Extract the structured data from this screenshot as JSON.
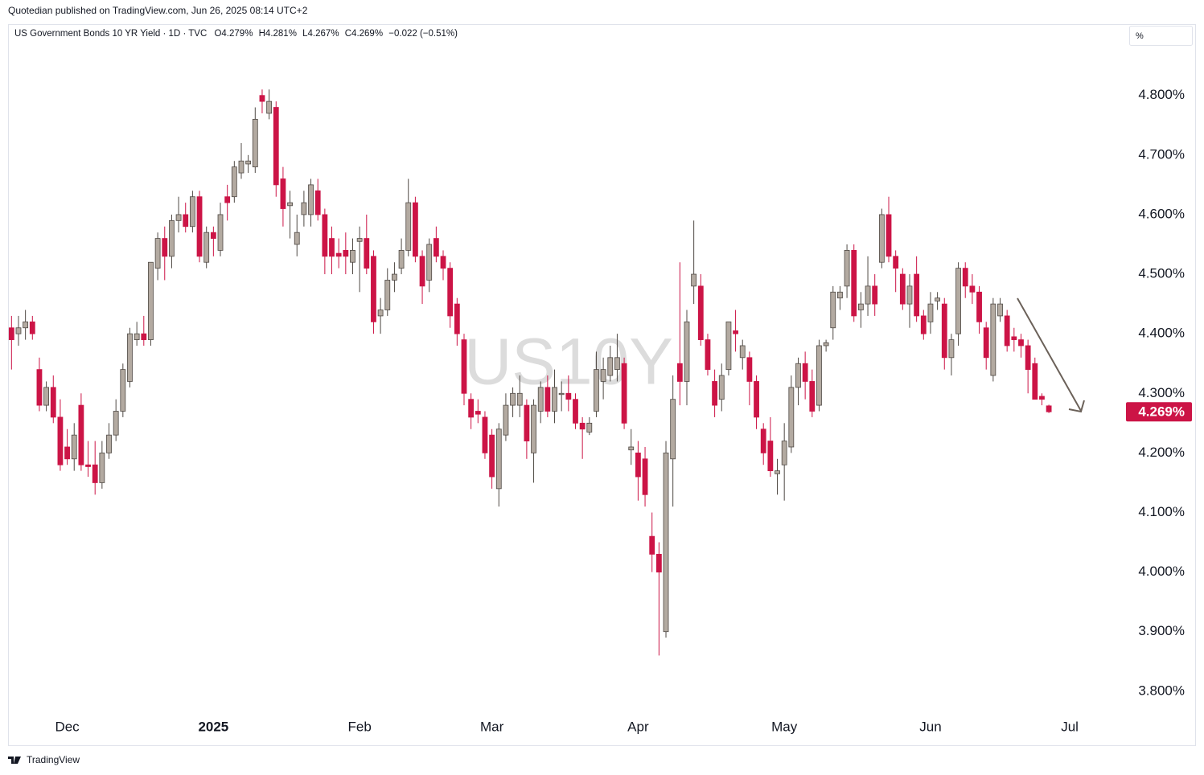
{
  "header": {
    "published": "Quotedian published on TradingView.com, Jun 26, 2025 08:14 UTC+2"
  },
  "legend": {
    "symbol": "US Government Bonds 10 YR Yield · 1D · TVC",
    "ohlc": [
      "O4.279%",
      "H4.281%",
      "L4.267%",
      "C4.269%"
    ],
    "change": "−0.022 (−0.51%)"
  },
  "unit": "%",
  "watermark": "US10Y",
  "footer": "TradingView",
  "chart_data": {
    "type": "candlestick",
    "up_color": "#b3aaa1",
    "down_color": "#cc1446",
    "grid": false,
    "ylim": [
      3.762,
      4.917
    ],
    "yticks": [
      {
        "value": 3.8,
        "label": "3.800%"
      },
      {
        "value": 3.9,
        "label": "3.900%"
      },
      {
        "value": 4.0,
        "label": "4.000%"
      },
      {
        "value": 4.1,
        "label": "4.100%"
      },
      {
        "value": 4.2,
        "label": "4.200%"
      },
      {
        "value": 4.3,
        "label": "4.300%"
      },
      {
        "value": 4.4,
        "label": "4.400%"
      },
      {
        "value": 4.5,
        "label": "4.500%"
      },
      {
        "value": 4.6,
        "label": "4.600%"
      },
      {
        "value": 4.7,
        "label": "4.700%"
      },
      {
        "value": 4.8,
        "label": "4.800%"
      }
    ],
    "last_price": {
      "value": 4.269,
      "label": "4.269%"
    },
    "categories": [
      null,
      null,
      null,
      null,
      null,
      null,
      null,
      null,
      "Dec",
      null,
      null,
      null,
      null,
      null,
      null,
      null,
      null,
      null,
      null,
      null,
      null,
      null,
      null,
      null,
      null,
      null,
      null,
      null,
      null,
      "2025",
      null,
      null,
      null,
      null,
      null,
      null,
      null,
      null,
      null,
      null,
      null,
      null,
      null,
      null,
      null,
      null,
      null,
      null,
      null,
      null,
      "Feb",
      null,
      null,
      null,
      null,
      null,
      null,
      null,
      null,
      null,
      null,
      null,
      null,
      null,
      null,
      null,
      null,
      null,
      null,
      "Mar",
      null,
      null,
      null,
      null,
      null,
      null,
      null,
      null,
      null,
      null,
      null,
      null,
      null,
      null,
      null,
      null,
      null,
      null,
      null,
      null,
      "Apr",
      null,
      null,
      null,
      null,
      null,
      null,
      null,
      null,
      null,
      null,
      null,
      null,
      null,
      null,
      null,
      null,
      null,
      null,
      null,
      null,
      "May",
      null,
      null,
      null,
      null,
      null,
      null,
      null,
      null,
      null,
      null,
      null,
      null,
      null,
      null,
      null,
      null,
      null,
      null,
      null,
      null,
      "Jun",
      null,
      null,
      null,
      null,
      null,
      null,
      null,
      null,
      null,
      null,
      null,
      null,
      null,
      null,
      null,
      null,
      null,
      null,
      null,
      "Jul",
      null,
      null,
      null,
      null,
      null,
      null,
      null
    ],
    "open": [
      4.41,
      4.4,
      4.41,
      4.42,
      4.34,
      4.28,
      4.31,
      4.26,
      4.21,
      4.19,
      4.28,
      4.18,
      4.18,
      4.15,
      4.2,
      4.23,
      4.27,
      4.32,
      4.39,
      4.4,
      4.39,
      4.51,
      4.56,
      4.53,
      4.59,
      4.6,
      4.58,
      4.63,
      4.52,
      4.57,
      4.54,
      4.63,
      4.63,
      4.67,
      4.685,
      4.68,
      4.8,
      4.77,
      4.78,
      4.66,
      4.615,
      4.55,
      4.6,
      4.6,
      4.64,
      4.6,
      4.56,
      4.535,
      4.54,
      4.52,
      4.555,
      4.56,
      4.53,
      4.43,
      4.44,
      4.49,
      4.51,
      4.54,
      4.62,
      4.53,
      4.49,
      4.56,
      4.53,
      4.51,
      4.45,
      4.39,
      4.29,
      4.27,
      4.26,
      4.23,
      4.14,
      4.23,
      4.28,
      4.28,
      4.28,
      4.2,
      4.27,
      4.31,
      4.27,
      4.298,
      4.3,
      4.29,
      4.25,
      4.235,
      4.27,
      4.32,
      4.33,
      4.34,
      4.35,
      4.205,
      4.2,
      4.19,
      4.06,
      4.03,
      3.9,
      4.19,
      4.35,
      4.32,
      4.48,
      4.48,
      4.39,
      4.32,
      4.29,
      4.34,
      4.405,
      4.36,
      4.36,
      4.32,
      4.24,
      4.22,
      4.165,
      4.18,
      4.21,
      4.31,
      4.35,
      4.32,
      4.28,
      4.38,
      4.41,
      4.46,
      4.48,
      4.54,
      4.44,
      4.45,
      4.48,
      4.52,
      4.6,
      4.53,
      4.5,
      4.45,
      4.5,
      4.43,
      4.42,
      4.455,
      4.45,
      4.36,
      4.4,
      4.51,
      4.48,
      4.47,
      4.41,
      4.33,
      4.43,
      4.43,
      4.395,
      4.39,
      4.38,
      4.35,
      4.295,
      4.279,
      null,
      null,
      null,
      null,
      null,
      null,
      null,
      null,
      null,
      null
    ],
    "high": [
      4.43,
      4.43,
      4.44,
      4.43,
      4.36,
      4.32,
      4.33,
      4.29,
      4.24,
      4.25,
      4.3,
      4.22,
      4.22,
      4.22,
      4.25,
      4.29,
      4.35,
      4.41,
      4.42,
      4.43,
      4.52,
      4.57,
      4.58,
      4.6,
      4.63,
      4.62,
      4.64,
      4.64,
      4.58,
      4.58,
      4.62,
      4.65,
      4.69,
      4.72,
      4.7,
      4.78,
      4.81,
      4.81,
      4.79,
      4.68,
      4.64,
      4.6,
      4.64,
      4.66,
      4.66,
      4.61,
      4.58,
      4.56,
      4.57,
      4.56,
      4.58,
      4.6,
      4.54,
      4.46,
      4.51,
      4.52,
      4.56,
      4.66,
      4.63,
      4.54,
      4.56,
      4.58,
      4.54,
      4.52,
      4.46,
      4.4,
      4.3,
      4.29,
      4.27,
      4.24,
      4.25,
      4.3,
      4.31,
      4.33,
      4.29,
      4.29,
      4.32,
      4.33,
      4.34,
      4.32,
      4.33,
      4.3,
      4.26,
      4.26,
      4.37,
      4.36,
      4.38,
      4.4,
      4.36,
      4.24,
      4.22,
      4.21,
      4.1,
      4.05,
      4.22,
      4.33,
      4.52,
      4.44,
      4.59,
      4.5,
      4.4,
      4.34,
      4.35,
      4.42,
      4.44,
      4.39,
      4.37,
      4.33,
      4.25,
      4.26,
      4.19,
      4.25,
      4.33,
      4.36,
      4.37,
      4.34,
      4.39,
      4.39,
      4.48,
      4.48,
      4.55,
      4.55,
      4.47,
      4.53,
      4.5,
      4.61,
      4.63,
      4.54,
      4.51,
      4.5,
      4.53,
      4.44,
      4.47,
      4.47,
      4.46,
      4.4,
      4.52,
      4.52,
      4.5,
      4.48,
      4.42,
      4.46,
      4.46,
      4.44,
      4.41,
      4.4,
      4.39,
      4.36,
      4.3,
      4.281,
      null,
      null,
      null,
      null,
      null,
      null,
      null,
      null,
      null,
      null
    ],
    "low": [
      4.34,
      4.38,
      4.39,
      4.39,
      4.27,
      4.27,
      4.25,
      4.17,
      4.18,
      4.17,
      4.17,
      4.16,
      4.13,
      4.14,
      4.19,
      4.22,
      4.26,
      4.31,
      4.38,
      4.38,
      4.38,
      4.49,
      4.49,
      4.51,
      4.57,
      4.57,
      4.57,
      4.52,
      4.51,
      4.53,
      4.53,
      4.59,
      4.62,
      4.66,
      4.67,
      4.67,
      4.77,
      4.76,
      4.63,
      4.58,
      4.56,
      4.53,
      4.58,
      4.58,
      4.59,
      4.5,
      4.5,
      4.51,
      4.5,
      4.5,
      4.47,
      4.5,
      4.4,
      4.4,
      4.43,
      4.47,
      4.5,
      4.53,
      4.52,
      4.45,
      4.47,
      4.52,
      4.49,
      4.41,
      4.38,
      4.28,
      4.24,
      4.25,
      4.19,
      4.14,
      4.11,
      4.22,
      4.26,
      4.26,
      4.19,
      4.15,
      4.25,
      4.26,
      4.25,
      4.27,
      4.27,
      4.24,
      4.19,
      4.23,
      4.26,
      4.29,
      4.32,
      4.32,
      4.24,
      4.18,
      4.12,
      4.11,
      4.0,
      3.86,
      3.89,
      4.11,
      4.28,
      4.28,
      4.45,
      4.38,
      4.33,
      4.26,
      4.27,
      4.33,
      4.37,
      4.34,
      4.28,
      4.24,
      4.18,
      4.16,
      4.13,
      4.12,
      4.2,
      4.28,
      4.29,
      4.26,
      4.27,
      4.37,
      4.39,
      4.44,
      4.46,
      4.42,
      4.41,
      4.43,
      4.43,
      4.51,
      4.52,
      4.47,
      4.44,
      4.41,
      4.42,
      4.39,
      4.4,
      4.44,
      4.34,
      4.33,
      4.38,
      4.46,
      4.45,
      4.4,
      4.34,
      4.32,
      4.42,
      4.37,
      4.37,
      4.36,
      4.3,
      4.29,
      4.28,
      4.267,
      null,
      null,
      null,
      null,
      null,
      null,
      null,
      null,
      null,
      null
    ],
    "close": [
      4.39,
      4.41,
      4.42,
      4.4,
      4.28,
      4.31,
      4.26,
      4.18,
      4.19,
      4.23,
      4.18,
      4.177,
      4.15,
      4.2,
      4.23,
      4.27,
      4.34,
      4.4,
      4.4,
      4.39,
      4.52,
      4.56,
      4.53,
      4.59,
      4.6,
      4.58,
      4.63,
      4.53,
      4.57,
      4.56,
      4.6,
      4.62,
      4.68,
      4.69,
      4.69,
      4.76,
      4.79,
      4.79,
      4.65,
      4.61,
      4.62,
      4.57,
      4.62,
      4.65,
      4.6,
      4.53,
      4.53,
      4.53,
      4.53,
      4.54,
      4.56,
      4.51,
      4.42,
      4.44,
      4.49,
      4.5,
      4.54,
      4.62,
      4.53,
      4.48,
      4.55,
      4.53,
      4.51,
      4.43,
      4.4,
      4.3,
      4.26,
      4.265,
      4.2,
      4.16,
      4.24,
      4.28,
      4.3,
      4.3,
      4.22,
      4.28,
      4.31,
      4.27,
      4.31,
      4.3,
      4.29,
      4.25,
      4.24,
      4.25,
      4.34,
      4.34,
      4.36,
      4.36,
      4.25,
      4.21,
      4.16,
      4.13,
      4.03,
      4.0,
      4.2,
      4.29,
      4.32,
      4.42,
      4.5,
      4.39,
      4.34,
      4.28,
      4.33,
      4.42,
      4.4,
      4.38,
      4.32,
      4.26,
      4.2,
      4.17,
      4.17,
      4.22,
      4.31,
      4.35,
      4.32,
      4.27,
      4.38,
      4.385,
      4.47,
      4.47,
      4.54,
      4.43,
      4.45,
      4.48,
      4.45,
      4.6,
      4.53,
      4.51,
      4.45,
      4.48,
      4.43,
      4.4,
      4.45,
      4.46,
      4.36,
      4.39,
      4.51,
      4.48,
      4.47,
      4.42,
      4.36,
      4.45,
      4.45,
      4.38,
      4.39,
      4.38,
      4.34,
      4.29,
      4.29,
      4.269,
      null,
      null,
      null,
      null,
      null,
      null,
      null,
      null,
      null,
      null
    ]
  }
}
